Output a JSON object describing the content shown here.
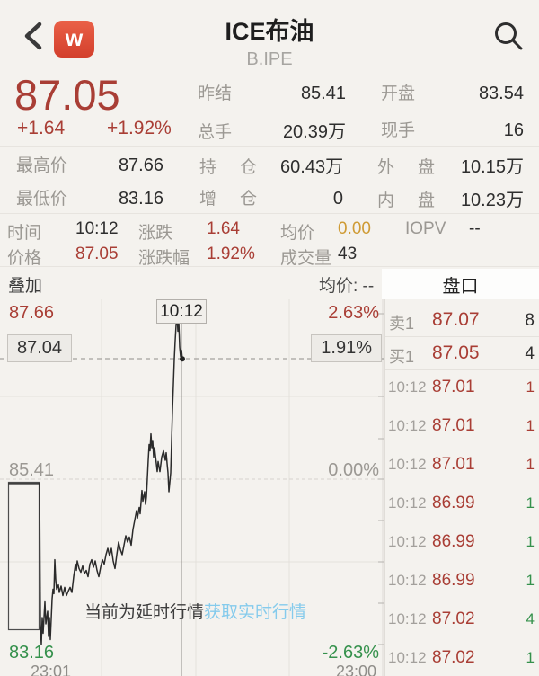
{
  "header": {
    "title": "ICE布油",
    "subtitle": "B.IPE",
    "logo_letter": "w"
  },
  "quote": {
    "price": "87.05",
    "change": "+1.64",
    "change_pct": "+1.92%",
    "stats_top": [
      {
        "label": "昨结",
        "value": "85.41"
      },
      {
        "label": "开盘",
        "value": "83.54"
      },
      {
        "label": "总手",
        "value": "20.39万"
      },
      {
        "label": "现手",
        "value": "16"
      }
    ],
    "stats_mid": [
      {
        "label": "最高价",
        "value": "87.66"
      },
      {
        "label": "持仓",
        "value": "60.43万"
      },
      {
        "label": "外盘",
        "value": "10.15万"
      },
      {
        "label": "最低价",
        "value": "83.16"
      },
      {
        "label": "增仓",
        "value": "0"
      },
      {
        "label": "内盘",
        "value": "10.23万"
      }
    ],
    "detail": [
      {
        "label": "时间",
        "value": "10:12"
      },
      {
        "label": "涨跌",
        "value": "1.64"
      },
      {
        "label": "均价",
        "value": "0.00"
      },
      {
        "label": "IOPV",
        "value": "--"
      },
      {
        "label": "价格",
        "value": "87.05"
      },
      {
        "label": "涨跌幅",
        "value": "1.92%"
      },
      {
        "label": "成交量",
        "value": "43"
      }
    ]
  },
  "chart": {
    "overlay_label": "叠加",
    "avg_label": "均价: --",
    "tab_label": "盘口",
    "y_left": {
      "high": "87.66",
      "mid": "85.41",
      "low": "83.16"
    },
    "y_right": {
      "high": "2.63%",
      "mid": "0.00%",
      "low": "-2.63%"
    },
    "crosshair": {
      "time": "10:12",
      "price": "87.04",
      "pct": "1.91%"
    },
    "x_labels": {
      "start": "23:01",
      "end": "23:00"
    },
    "delay_text": "当前为延时行情",
    "delay_link": "获取实时行情",
    "chart_data": {
      "type": "line",
      "title": "ICE布油 分时",
      "ylabel_left_prices": [
        87.66,
        85.41,
        83.16
      ],
      "ylabel_right_pct": [
        2.63,
        0.0,
        -2.63
      ],
      "prev_close": 85.41,
      "x_range": [
        "23:01",
        "23:00"
      ],
      "grid": true
    },
    "series": [
      [
        10,
        -0.07
      ],
      [
        44,
        -0.07
      ],
      [
        45,
        -2.3
      ],
      [
        46,
        -2.63
      ],
      [
        47,
        -2.2
      ],
      [
        48,
        -2.45
      ],
      [
        50,
        -1.95
      ],
      [
        51,
        -2.3
      ],
      [
        53,
        -2.1
      ],
      [
        54,
        -2.5
      ],
      [
        55,
        -2.2
      ],
      [
        56,
        -2.55
      ],
      [
        58,
        -1.9
      ],
      [
        59,
        -1.75
      ],
      [
        60,
        -1.82
      ],
      [
        61,
        -1.28
      ],
      [
        62,
        -1.6
      ],
      [
        63,
        -1.75
      ],
      [
        65,
        -1.68
      ],
      [
        66,
        -1.8
      ],
      [
        68,
        -1.7
      ],
      [
        70,
        -1.85
      ],
      [
        72,
        -1.72
      ],
      [
        74,
        -1.85
      ],
      [
        76,
        -1.78
      ],
      [
        78,
        -1.72
      ],
      [
        80,
        -1.8
      ],
      [
        82,
        -1.55
      ],
      [
        84,
        -1.35
      ],
      [
        85,
        -1.45
      ],
      [
        86,
        -1.3
      ],
      [
        88,
        -1.42
      ],
      [
        90,
        -1.48
      ],
      [
        92,
        -1.38
      ],
      [
        94,
        -1.5
      ],
      [
        96,
        -1.45
      ],
      [
        98,
        -1.55
      ],
      [
        100,
        -1.35
      ],
      [
        102,
        -1.28
      ],
      [
        104,
        -1.4
      ],
      [
        106,
        -1.3
      ],
      [
        108,
        -1.45
      ],
      [
        110,
        -1.55
      ],
      [
        112,
        -1.4
      ],
      [
        114,
        -1.28
      ],
      [
        116,
        -1.35
      ],
      [
        118,
        -1.2
      ],
      [
        120,
        -1.1
      ],
      [
        122,
        -1.22
      ],
      [
        124,
        -1.1
      ],
      [
        126,
        -1.3
      ],
      [
        128,
        -1.42
      ],
      [
        130,
        -1.2
      ],
      [
        132,
        -1.0
      ],
      [
        134,
        -1.12
      ],
      [
        136,
        -1.2
      ],
      [
        138,
        -1.05
      ],
      [
        140,
        -0.9
      ],
      [
        142,
        -1.0
      ],
      [
        144,
        -0.92
      ],
      [
        146,
        -1.05
      ],
      [
        148,
        -0.8
      ],
      [
        150,
        -0.65
      ],
      [
        152,
        -0.5
      ],
      [
        153,
        -0.62
      ],
      [
        155,
        -0.45
      ],
      [
        156,
        -0.55
      ],
      [
        158,
        -0.18
      ],
      [
        159,
        -0.35
      ],
      [
        161,
        -0.2
      ],
      [
        162,
        -0.4
      ],
      [
        163,
        -0.28
      ],
      [
        165,
        0.3
      ],
      [
        166,
        0.55
      ],
      [
        167,
        0.45
      ],
      [
        168,
        0.72
      ],
      [
        169,
        0.5
      ],
      [
        170,
        0.6
      ],
      [
        171,
        0.35
      ],
      [
        172,
        0.5
      ],
      [
        174,
        0.25
      ],
      [
        175,
        0.12
      ],
      [
        176,
        0.28
      ],
      [
        178,
        0.12
      ],
      [
        180,
        0.35
      ],
      [
        182,
        0.45
      ],
      [
        184,
        0.3
      ],
      [
        185,
        0.42
      ],
      [
        186,
        0.25
      ],
      [
        187,
        0.1
      ],
      [
        188,
        -0.2
      ],
      [
        189,
        -0.05
      ],
      [
        190,
        0.1
      ],
      [
        191,
        0.6
      ],
      [
        192,
        1.1
      ],
      [
        193,
        1.5
      ],
      [
        194,
        1.9
      ],
      [
        195,
        2.2
      ],
      [
        196,
        2.45
      ],
      [
        197,
        2.63
      ],
      [
        198,
        2.35
      ],
      [
        199,
        2.5
      ],
      [
        200,
        2.1
      ],
      [
        201,
        1.95
      ],
      [
        202,
        2.05
      ],
      [
        203,
        1.91
      ]
    ]
  },
  "orderbook": {
    "ask": {
      "label": "卖1",
      "price": "87.07",
      "qty": "8"
    },
    "bid": {
      "label": "买1",
      "price": "87.05",
      "qty": "4"
    },
    "ticks": [
      {
        "time": "10:12",
        "price": "87.01",
        "qty": "1",
        "color": "red"
      },
      {
        "time": "10:12",
        "price": "87.01",
        "qty": "1",
        "color": "red"
      },
      {
        "time": "10:12",
        "price": "87.01",
        "qty": "1",
        "color": "red"
      },
      {
        "time": "10:12",
        "price": "86.99",
        "qty": "1",
        "color": "green"
      },
      {
        "time": "10:12",
        "price": "86.99",
        "qty": "1",
        "color": "green"
      },
      {
        "time": "10:12",
        "price": "86.99",
        "qty": "1",
        "color": "green"
      },
      {
        "time": "10:12",
        "price": "87.02",
        "qty": "4",
        "color": "green"
      },
      {
        "time": "10:12",
        "price": "87.02",
        "qty": "1",
        "color": "green"
      }
    ]
  },
  "colors": {
    "up_red": "#a93e35",
    "down_green": "#2f9e52",
    "avg_orange": "#cf9b35",
    "link_blue": "#85cbec"
  }
}
